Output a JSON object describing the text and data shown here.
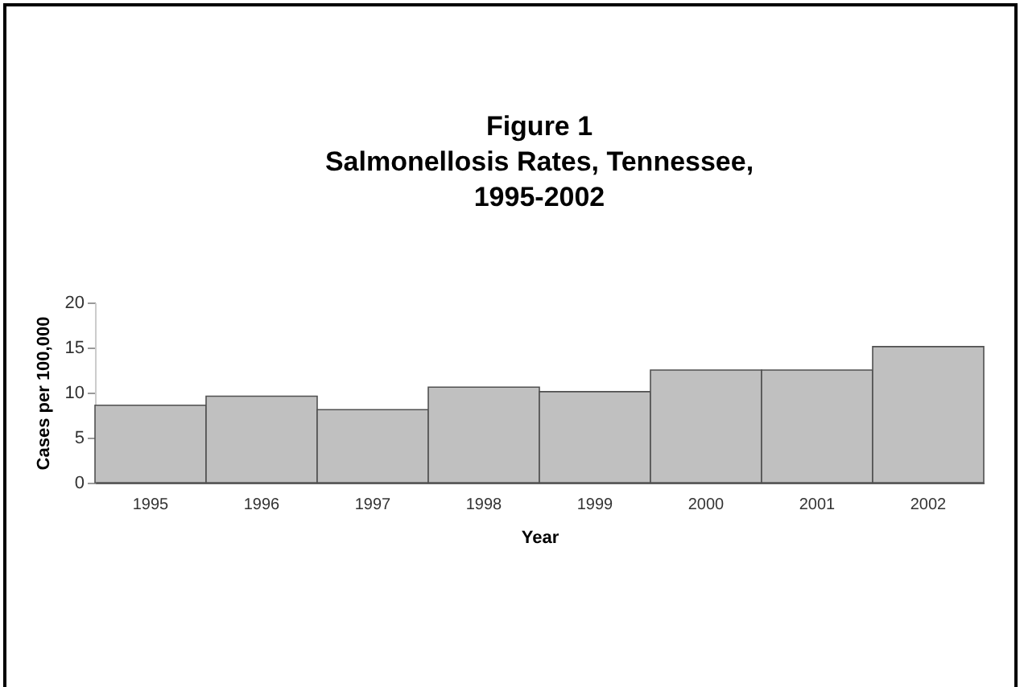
{
  "chart_data": {
    "type": "bar",
    "title": "Figure 1\nSalmonellosis Rates, Tennessee,\n1995-2002",
    "xlabel": "Year",
    "ylabel": "Cases per 100,000",
    "categories": [
      "1995",
      "1996",
      "1997",
      "1998",
      "1999",
      "2000",
      "2001",
      "2002"
    ],
    "values": [
      8.6,
      9.6,
      8.1,
      10.6,
      10.1,
      12.5,
      12.5,
      15.1
    ],
    "color": "#c0c0c0",
    "ylim": [
      0,
      20
    ],
    "yticks": [
      0,
      5,
      10,
      15,
      20
    ],
    "grid": false
  }
}
